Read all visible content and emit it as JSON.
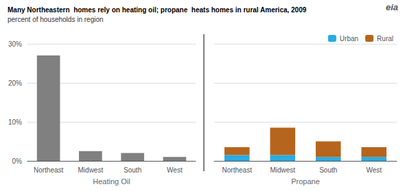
{
  "chart_data": [
    {
      "type": "bar",
      "title": "Many Northeastern  homes rely on heating oil; propane  heats homes in rural America, 2009",
      "subtitle": "percent of households in region",
      "annotation": "eia",
      "xlabel": "Heating Oil",
      "categories": [
        "Northeast",
        "Midwest",
        "South",
        "West"
      ],
      "values": [
        27.0,
        2.5,
        2.0,
        1.0
      ],
      "color": "#808080",
      "ylim": [
        0,
        30
      ],
      "yticks": [
        {
          "value": 0,
          "label": "0%"
        },
        {
          "value": 10,
          "label": "10%"
        },
        {
          "value": 20,
          "label": "20%"
        },
        {
          "value": 30,
          "label": "30%"
        }
      ],
      "grid": true
    },
    {
      "type": "bar",
      "xlabel": "Propane",
      "categories": [
        "Northeast",
        "Midwest",
        "South",
        "West"
      ],
      "stacked": true,
      "series": [
        {
          "name": "Urban",
          "color": "#29abe2",
          "values": [
            1.5,
            1.5,
            1.0,
            1.0
          ]
        },
        {
          "name": "Rural",
          "color": "#b5651d",
          "values": [
            2.0,
            7.0,
            4.0,
            2.5
          ]
        }
      ],
      "ylim": [
        0,
        30
      ],
      "yticks": [
        0,
        10,
        20,
        30
      ],
      "tick_labels": "x",
      "grid": true,
      "legend": "upper right"
    }
  ]
}
